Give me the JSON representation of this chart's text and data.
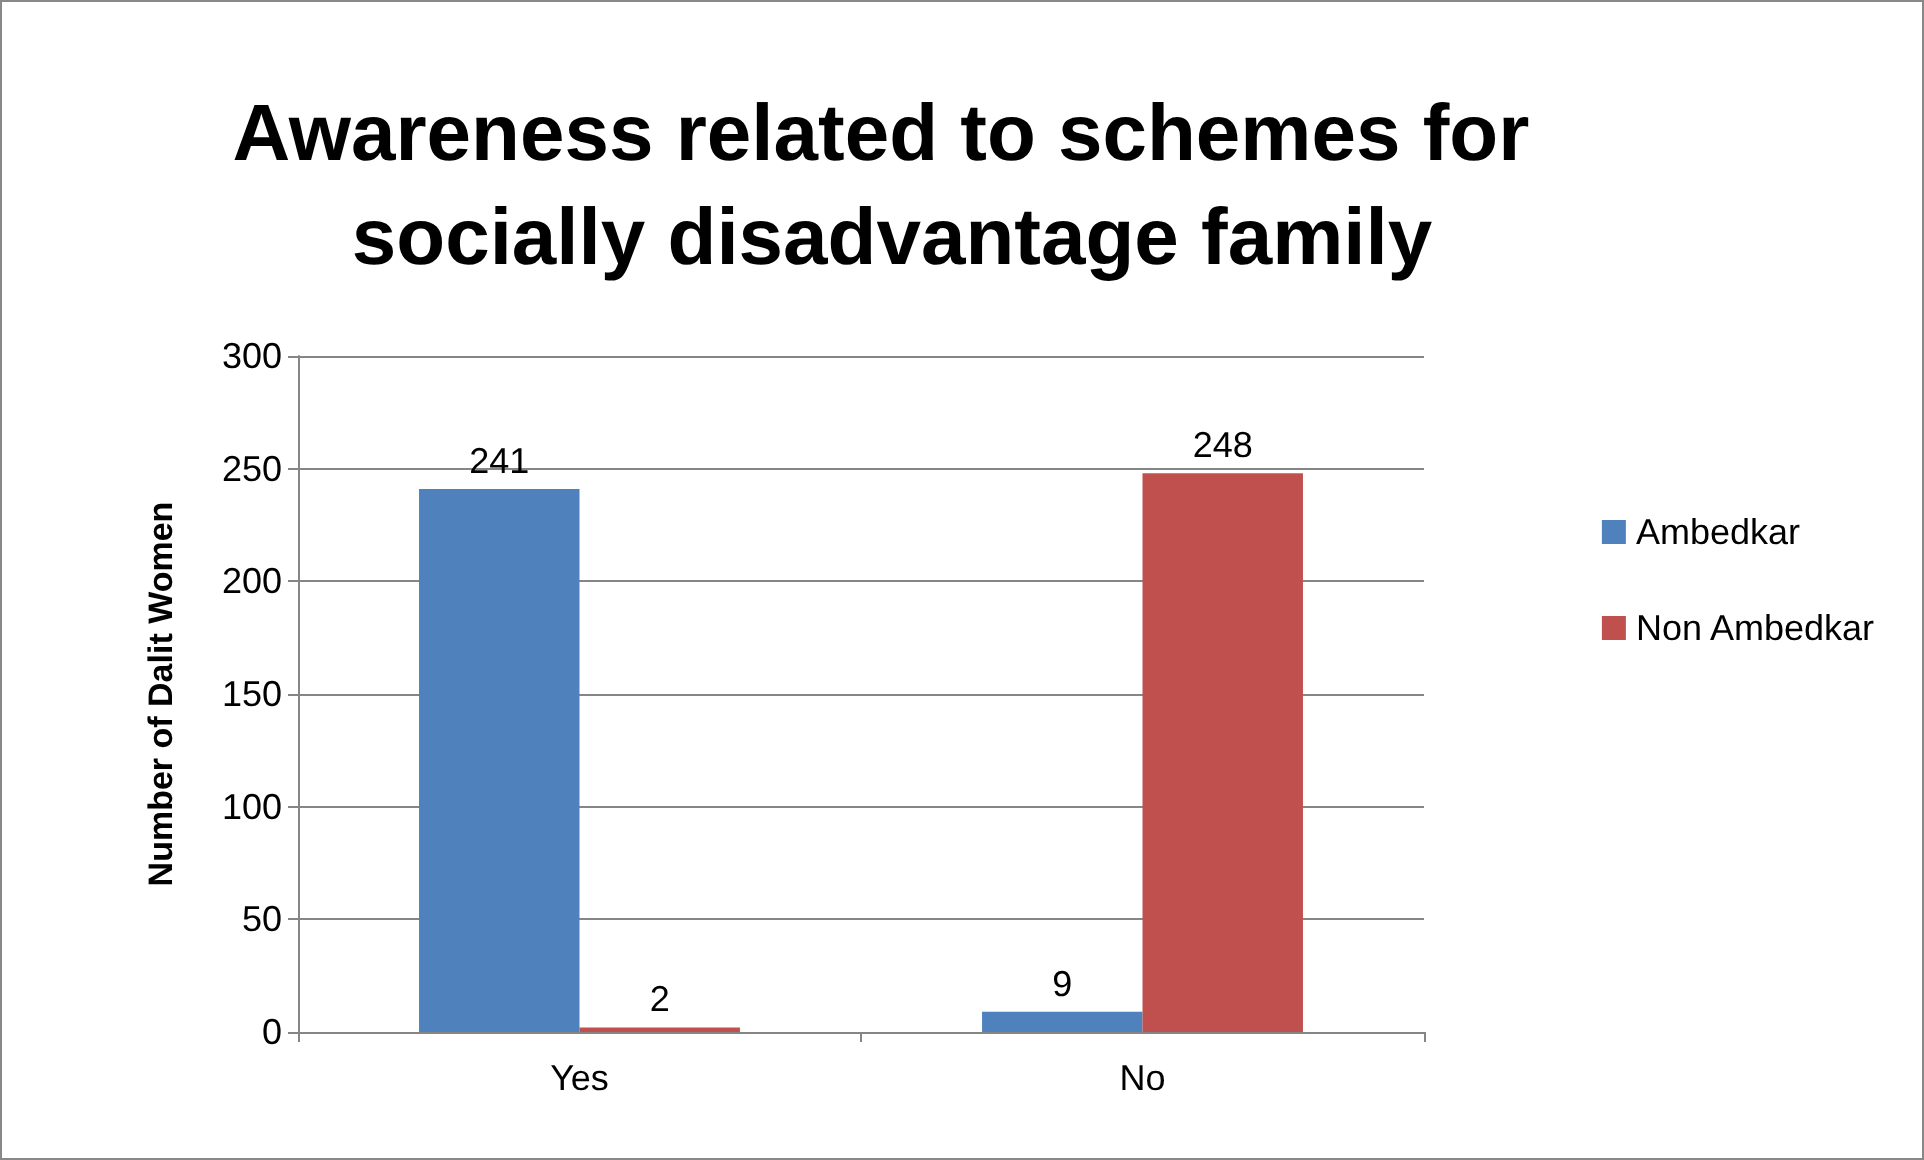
{
  "chart_data": {
    "type": "bar",
    "title": "Awareness related to schemes for socially disadvantage family",
    "ylabel": "Number of Dalit Women",
    "categories": [
      "Yes",
      "No"
    ],
    "series": [
      {
        "name": "Ambedkar",
        "color": "#4f81bd",
        "values": [
          241,
          9
        ]
      },
      {
        "name": "Non Ambedkar",
        "color": "#c0504d",
        "values": [
          2,
          248
        ]
      }
    ],
    "ylim": [
      0,
      300
    ],
    "yticks": [
      0,
      50,
      100,
      150,
      200,
      250,
      300
    ],
    "grid": "y",
    "legend": "right",
    "data_labels": true
  }
}
